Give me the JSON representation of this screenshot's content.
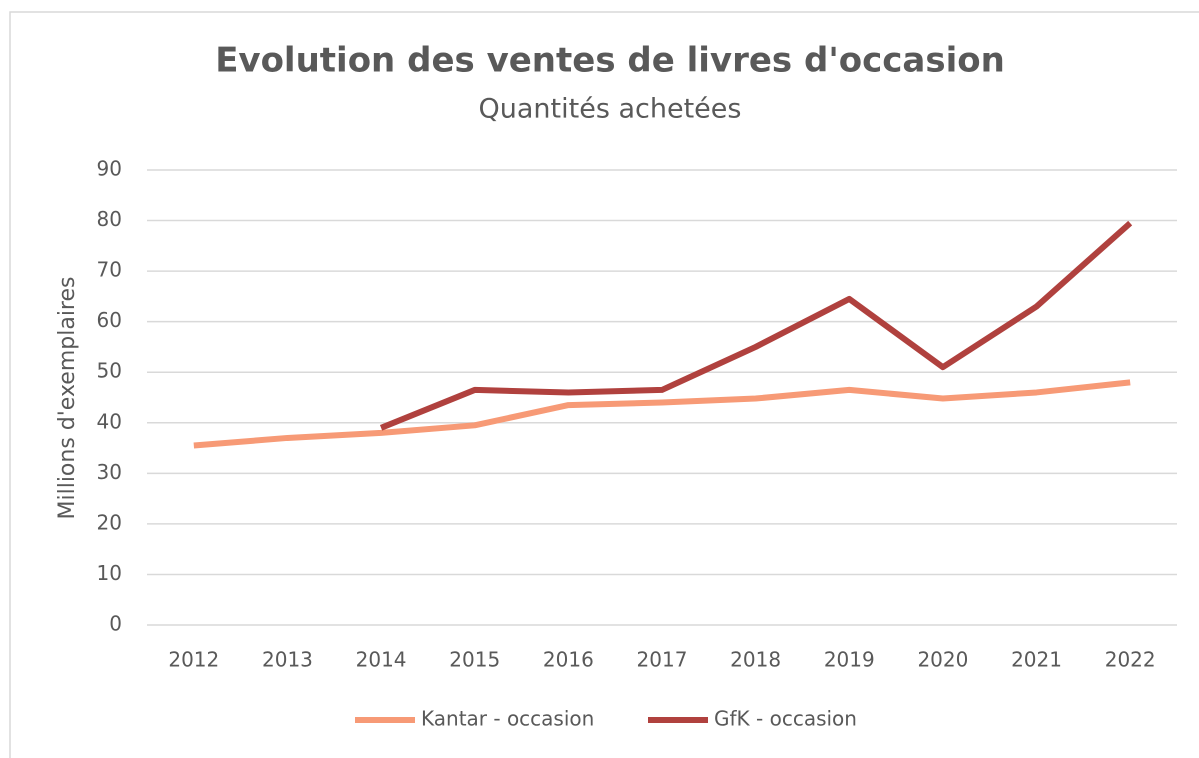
{
  "chart_data": {
    "type": "line",
    "title": "Evolution des ventes de livres d'occasion",
    "subtitle": "Quantités achetées",
    "y_label": "Millions d'exemplaires",
    "categories": [
      "2012",
      "2013",
      "2014",
      "2015",
      "2016",
      "2017",
      "2018",
      "2019",
      "2020",
      "2021",
      "2022"
    ],
    "series": [
      {
        "name": "Kantar - occasion",
        "color": "#f79a76",
        "values": [
          35.5,
          37,
          38,
          39.5,
          43.5,
          44,
          44.8,
          46.5,
          44.8,
          46,
          48
        ]
      },
      {
        "name": "GfK - occasion",
        "color": "#b0413e",
        "values": [
          null,
          null,
          39,
          46.5,
          46,
          46.5,
          55,
          64.5,
          51,
          63,
          79.5
        ]
      }
    ],
    "ylim": [
      0,
      90
    ],
    "yticks": [
      0,
      10,
      20,
      30,
      40,
      50,
      60,
      70,
      80,
      90
    ],
    "grid": true,
    "legend": "bottom"
  }
}
